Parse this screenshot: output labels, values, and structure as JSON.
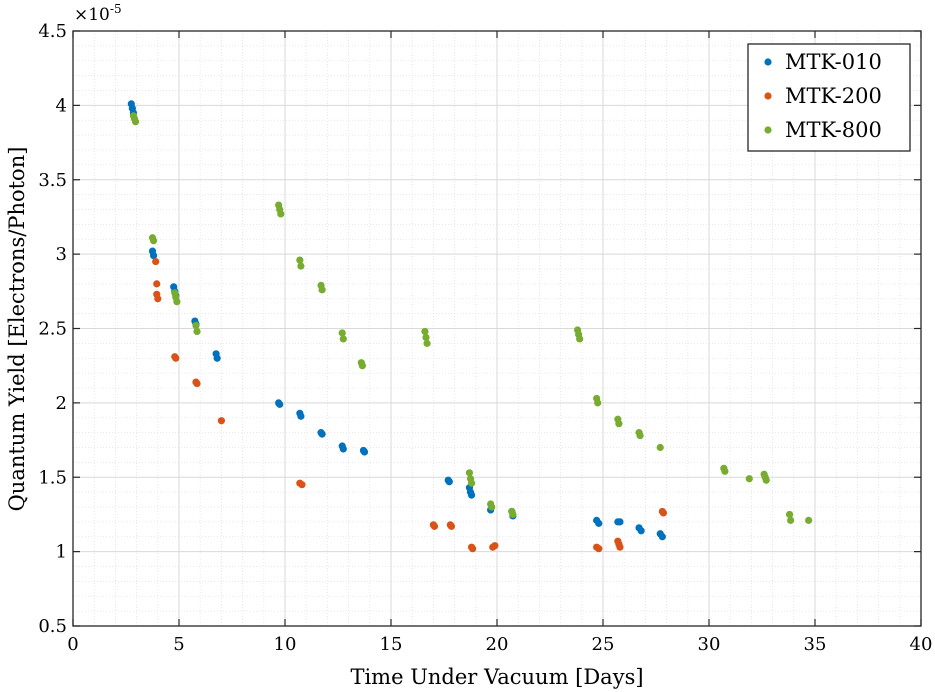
{
  "chart_data": {
    "type": "scatter",
    "title": "",
    "xlabel": "Time Under Vacuum [Days]",
    "ylabel": "Quantum Yield [Electrons/Photon]",
    "xlim": [
      0,
      40
    ],
    "ylim": [
      0.5,
      4.5
    ],
    "xticks": [
      0,
      5,
      10,
      15,
      20,
      25,
      30,
      35,
      40
    ],
    "yticks": [
      0.5,
      1,
      1.5,
      2,
      2.5,
      3,
      3.5,
      4,
      4.5
    ],
    "xtick_labels": [
      "0",
      "5",
      "10",
      "15",
      "20",
      "25",
      "30",
      "35",
      "40"
    ],
    "ytick_labels": [
      "0.5",
      "1",
      "1.5",
      "2",
      "2.5",
      "3",
      "3.5",
      "4",
      "4.5"
    ],
    "y_multiplier": {
      "base": "×10",
      "exponent": "-5"
    },
    "grid": true,
    "minor_grid": true,
    "legend_position": "top-right",
    "series": [
      {
        "name": "MTK-010",
        "color": "#0072BD",
        "x": [
          2.75,
          2.8,
          2.85,
          3.75,
          3.8,
          4.75,
          4.8,
          4.85,
          5.75,
          5.8,
          6.75,
          6.8,
          9.7,
          9.75,
          10.7,
          10.75,
          11.7,
          11.75,
          12.7,
          12.75,
          13.7,
          13.75,
          17.7,
          17.75,
          18.7,
          18.75,
          18.8,
          19.7,
          20.7,
          20.75,
          24.7,
          24.8,
          25.7,
          25.8,
          26.7,
          26.8,
          27.7,
          27.8
        ],
        "y": [
          4.01,
          3.98,
          3.95,
          3.02,
          2.99,
          2.78,
          2.75,
          2.72,
          2.55,
          2.53,
          2.33,
          2.3,
          2.0,
          1.99,
          1.93,
          1.91,
          1.8,
          1.79,
          1.71,
          1.69,
          1.68,
          1.67,
          1.48,
          1.47,
          1.43,
          1.4,
          1.38,
          1.28,
          1.27,
          1.24,
          1.21,
          1.19,
          1.2,
          1.2,
          1.16,
          1.14,
          1.12,
          1.1
        ]
      },
      {
        "name": "MTK-200",
        "color": "#D95319",
        "x": [
          3.9,
          3.95,
          3.95,
          4.0,
          4.8,
          4.85,
          5.8,
          5.85,
          7.0,
          10.7,
          10.8,
          17.0,
          17.05,
          17.8,
          17.85,
          18.8,
          18.85,
          19.8,
          19.9,
          24.7,
          24.8,
          25.7,
          25.75,
          25.8,
          27.8,
          27.85
        ],
        "y": [
          2.95,
          2.8,
          2.73,
          2.7,
          2.31,
          2.3,
          2.14,
          2.13,
          1.88,
          1.46,
          1.45,
          1.18,
          1.17,
          1.18,
          1.17,
          1.03,
          1.02,
          1.03,
          1.04,
          1.03,
          1.02,
          1.07,
          1.05,
          1.03,
          1.27,
          1.26
        ]
      },
      {
        "name": "MTK-800",
        "color": "#77AC30",
        "x": [
          2.85,
          2.9,
          2.95,
          3.75,
          3.8,
          4.8,
          4.85,
          4.9,
          5.8,
          5.85,
          9.7,
          9.75,
          9.8,
          10.7,
          10.75,
          11.7,
          11.75,
          12.7,
          12.75,
          13.6,
          13.65,
          16.6,
          16.65,
          16.7,
          18.7,
          18.75,
          18.8,
          19.7,
          19.75,
          20.7,
          20.75,
          23.8,
          23.85,
          23.9,
          24.7,
          24.75,
          25.7,
          25.75,
          26.7,
          26.75,
          27.7,
          30.7,
          30.75,
          31.9,
          32.6,
          32.65,
          32.7,
          33.8,
          33.85,
          34.7
        ],
        "y": [
          3.93,
          3.91,
          3.89,
          3.11,
          3.09,
          2.74,
          2.71,
          2.68,
          2.52,
          2.48,
          3.33,
          3.3,
          3.27,
          2.96,
          2.92,
          2.79,
          2.76,
          2.47,
          2.43,
          2.27,
          2.25,
          2.48,
          2.44,
          2.4,
          1.53,
          1.49,
          1.46,
          1.32,
          1.3,
          1.27,
          1.25,
          2.49,
          2.46,
          2.43,
          2.03,
          2.0,
          1.89,
          1.86,
          1.8,
          1.78,
          1.7,
          1.56,
          1.54,
          1.49,
          1.52,
          1.5,
          1.48,
          1.25,
          1.21,
          1.21
        ]
      }
    ]
  }
}
